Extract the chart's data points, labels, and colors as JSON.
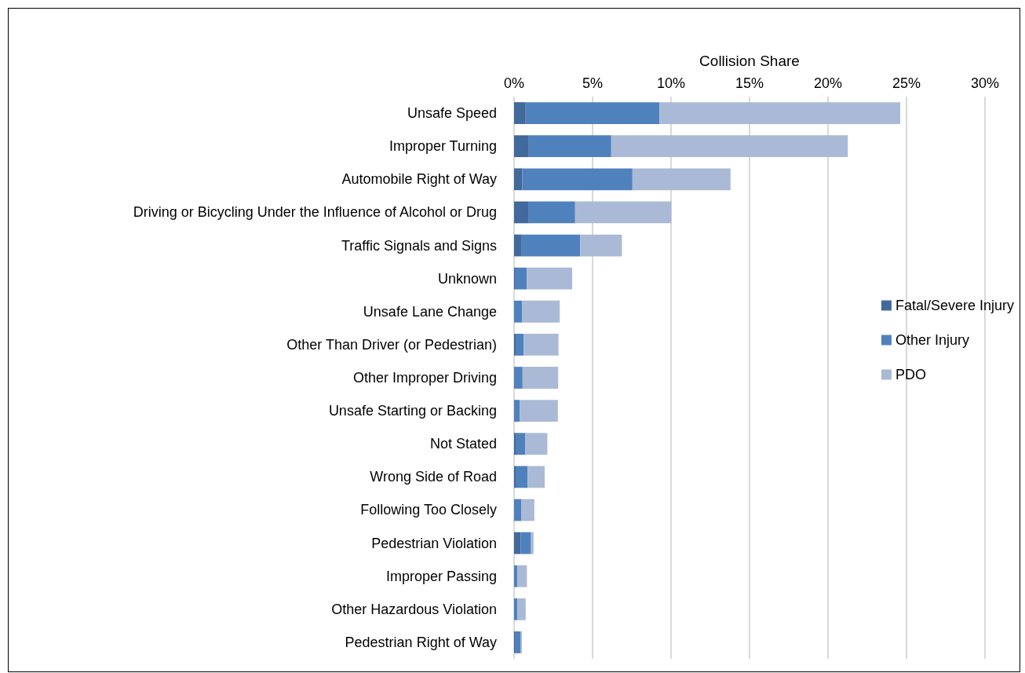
{
  "chart_data": {
    "type": "bar",
    "orientation": "horizontal",
    "stacked": true,
    "xlabel": "Collision Share",
    "categories": [
      "Unsafe Speed",
      "Improper Turning",
      "Automobile Right of Way",
      "Driving or Bicycling Under the Influence of Alcohol or Drug",
      "Traffic Signals and Signs",
      "Unknown",
      "Unsafe Lane Change",
      "Other Than Driver (or Pedestrian)",
      "Other Improper Driving",
      "Unsafe Starting or Backing",
      "Not Stated",
      "Wrong Side of Road",
      "Following Too Closely",
      "Pedestrian Violation",
      "Improper Passing",
      "Other Hazardous Violation",
      "Pedestrian Right of Way"
    ],
    "series": [
      {
        "name": "Fatal/Severe Injury",
        "color": "#41699c",
        "values": [
          0.74,
          0.94,
          0.52,
          0.94,
          0.49,
          0.05,
          0,
          0.1,
          0,
          0,
          0.1,
          0.1,
          0,
          0.42,
          0,
          0,
          0.05
        ]
      },
      {
        "name": "Other Injury",
        "color": "#4f81bd",
        "values": [
          8.52,
          5.25,
          7.02,
          2.95,
          3.72,
          0.76,
          0.52,
          0.52,
          0.54,
          0.37,
          0.62,
          0.77,
          0.47,
          0.66,
          0.22,
          0.22,
          0.35
        ]
      },
      {
        "name": "PDO",
        "color": "#aab9d6",
        "values": [
          15.34,
          15.07,
          6.25,
          6.13,
          2.66,
          2.89,
          2.39,
          2.21,
          2.27,
          2.42,
          1.4,
          1.08,
          0.82,
          0.16,
          0.6,
          0.52,
          0.1
        ]
      }
    ],
    "xlim": [
      0,
      30
    ],
    "xticks": [
      {
        "value": 0,
        "label": "0%"
      },
      {
        "value": 5,
        "label": "5%"
      },
      {
        "value": 10,
        "label": "10%"
      },
      {
        "value": 15,
        "label": "15%"
      },
      {
        "value": 20,
        "label": "20%"
      },
      {
        "value": 25,
        "label": "25%"
      },
      {
        "value": 30,
        "label": "30%"
      }
    ],
    "grid": "x",
    "legend": "right"
  }
}
